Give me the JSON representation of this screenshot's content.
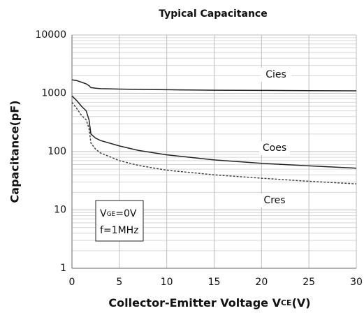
{
  "chart_data": {
    "type": "line",
    "title": "Typical Capacitance",
    "x_label": {
      "main": "Collector-Emitter Voltage V",
      "sub": "CE",
      "tail": "(V)"
    },
    "y_label": "Capacitance(pF)",
    "annotation": {
      "line1": {
        "main": "V",
        "sub": "GE",
        "tail": "=0V"
      },
      "line2": "f=1MHz"
    },
    "x": [
      0,
      0.5,
      1,
      1.5,
      1.8,
      2,
      2.5,
      3,
      5,
      7,
      10,
      15,
      20,
      25,
      30
    ],
    "series": [
      {
        "name": "Cies",
        "color": "#222222",
        "style": "solid",
        "values": [
          1700,
          1650,
          1550,
          1450,
          1350,
          1250,
          1220,
          1200,
          1180,
          1165,
          1150,
          1130,
          1120,
          1110,
          1100
        ]
      },
      {
        "name": "Coes",
        "color": "#222222",
        "style": "solid",
        "values": [
          900,
          750,
          600,
          500,
          350,
          200,
          170,
          155,
          125,
          105,
          88,
          72,
          63,
          57,
          52
        ]
      },
      {
        "name": "Cres",
        "color": "#444444",
        "style": "dashed",
        "values": [
          700,
          550,
          420,
          350,
          250,
          140,
          110,
          95,
          70,
          58,
          48,
          40,
          35,
          31,
          28
        ]
      }
    ],
    "xlim": [
      0,
      30
    ],
    "xticks": [
      0,
      5,
      10,
      15,
      20,
      25,
      30
    ],
    "ylim": [
      1,
      10000
    ],
    "yticks": [
      1,
      10,
      100,
      1000,
      10000
    ],
    "ylog": true,
    "grid": true
  }
}
